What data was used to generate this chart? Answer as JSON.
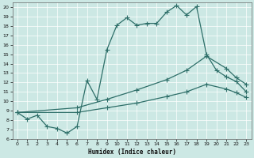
{
  "xlabel": "Humidex (Indice chaleur)",
  "bg_color": "#cce8e4",
  "line_color": "#2d6e68",
  "grid_color": "#ffffff",
  "xlim": [
    -0.5,
    23.5
  ],
  "ylim": [
    6,
    20.5
  ],
  "yticks": [
    6,
    7,
    8,
    9,
    10,
    11,
    12,
    13,
    14,
    15,
    16,
    17,
    18,
    19,
    20
  ],
  "xticks": [
    0,
    1,
    2,
    3,
    4,
    5,
    6,
    7,
    8,
    9,
    10,
    11,
    12,
    13,
    14,
    15,
    16,
    17,
    18,
    19,
    20,
    21,
    22,
    23
  ],
  "line1_x": [
    0,
    1,
    2,
    3,
    4,
    5,
    6,
    7,
    8,
    9,
    10,
    11,
    12,
    13,
    14,
    15,
    16,
    17,
    18,
    19,
    20,
    21,
    22,
    23
  ],
  "line1_y": [
    8.8,
    8.1,
    8.5,
    7.3,
    7.1,
    6.6,
    7.3,
    12.2,
    10.2,
    15.5,
    18.1,
    18.9,
    18.1,
    18.3,
    18.3,
    19.5,
    20.2,
    19.2,
    20.1,
    15.0,
    13.3,
    12.6,
    12.1,
    11.0
  ],
  "line2_x": [
    0,
    6,
    9,
    12,
    15,
    17,
    19,
    21,
    22,
    23
  ],
  "line2_y": [
    8.8,
    9.3,
    10.2,
    11.2,
    12.3,
    13.3,
    14.8,
    13.5,
    12.5,
    11.8
  ],
  "line3_x": [
    0,
    6,
    9,
    12,
    15,
    17,
    19,
    21,
    22,
    23
  ],
  "line3_y": [
    8.8,
    8.8,
    9.3,
    9.8,
    10.5,
    11.0,
    11.8,
    11.3,
    10.9,
    10.4
  ],
  "markersize": 2.5,
  "linewidth": 0.9
}
